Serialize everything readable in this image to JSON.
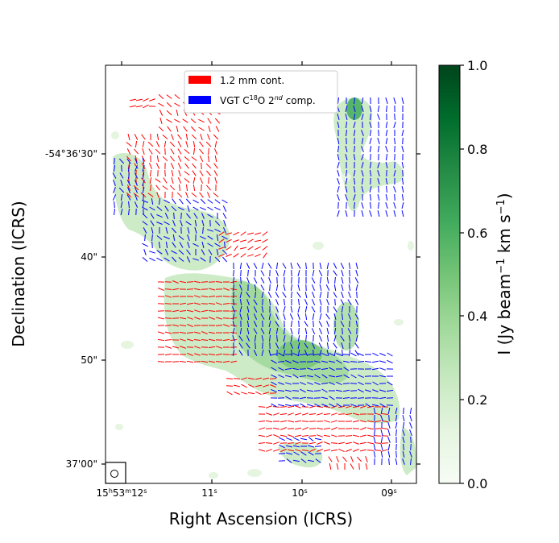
{
  "chart_data": {
    "type": "map",
    "xlabel": "Right Ascension (ICRS)",
    "ylabel": "Declination (ICRS)",
    "x_ticks": [
      {
        "main": "15",
        "sup1": "h",
        "mid": "53",
        "sup2": "m",
        "last": "12",
        "sup3": "s",
        "value_s": 12
      },
      {
        "main": "11",
        "sup1": "s",
        "value_s": 11
      },
      {
        "main": "10",
        "sup1": "s",
        "value_s": 10
      },
      {
        "main": "09",
        "sup1": "s",
        "value_s": 9
      }
    ],
    "y_ticks": [
      {
        "label": "-54°36'30\"",
        "value_arcsec": 30
      },
      {
        "label": "40\"",
        "value_arcsec": 40
      },
      {
        "label": "50\"",
        "value_arcsec": 50
      },
      {
        "label": "37'00\"",
        "value_arcsec": 60
      }
    ],
    "legend": {
      "location": "upper center",
      "entries": [
        {
          "label": "1.2 mm cont.",
          "color": "#ff0000"
        },
        {
          "label_prefix": "VGT C",
          "label_sup": "18",
          "label_mid": "O 2",
          "label_sup2": "nd",
          "label_suffix": " comp.",
          "color": "#0000ff"
        }
      ]
    },
    "colorbar": {
      "label_prefix": "I (Jy beam",
      "label_sup1": "−1",
      "label_mid": " km s",
      "label_sup2": "−1",
      "label_suffix": ")",
      "ticks": [
        "0.0",
        "0.2",
        "0.4",
        "0.6",
        "0.8",
        "1.0"
      ],
      "range": [
        0.0,
        1.0
      ],
      "colormap": "Greens"
    },
    "series": [
      {
        "name": "1.2 mm cont.",
        "color": "#ff0000",
        "marker": "polarization segments"
      },
      {
        "name": "VGT C18O 2nd comp.",
        "color": "#0000ff",
        "marker": "velocity gradient segments"
      }
    ]
  }
}
